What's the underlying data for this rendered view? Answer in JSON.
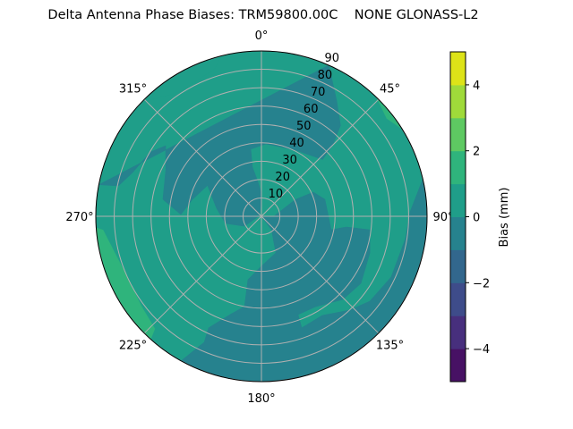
{
  "chart_data": {
    "type": "contour",
    "projection": "polar",
    "title": "Delta Antenna Phase Biases: TRM59800.00C    NONE GLONASS-L2",
    "theta_zero": "top",
    "theta_direction": "clockwise",
    "theta_ticks": [
      "0°",
      "45°",
      "90°",
      "135°",
      "180°",
      "225°",
      "270°",
      "315°"
    ],
    "r_ticks": [
      "10",
      "20",
      "30",
      "40",
      "50",
      "60",
      "70",
      "80",
      "90"
    ],
    "r_range": [
      0,
      90
    ],
    "grid": true,
    "levels": [
      -5,
      -4,
      -3,
      -2,
      -1,
      0,
      1,
      2,
      3,
      4,
      5
    ],
    "level_colors": [
      "#471164",
      "#472f7d",
      "#3e4c8a",
      "#32678d",
      "#26828e",
      "#1f9e89",
      "#2fb47c",
      "#5ec962",
      "#9fda3a",
      "#dde318"
    ],
    "background_band": [
      0,
      1
    ],
    "regions": [
      {
        "band": [
          -1,
          0
        ],
        "rim_arc": [
          281,
          384
        ],
        "points": [
          [
            24,
            90
          ],
          [
            33,
            75
          ],
          [
            41,
            65.5
          ],
          [
            45,
            54.7
          ],
          [
            47,
            45.4
          ],
          [
            27,
            40.5
          ],
          [
            3.5,
            39.5
          ],
          [
            351,
            37
          ],
          [
            349.6,
            27.2
          ],
          [
            354,
            19.1
          ],
          [
            0,
            12.2
          ],
          [
            300,
            1
          ],
          [
            239.6,
            10.7
          ],
          [
            258.7,
            19.9
          ],
          [
            280,
            24.7
          ],
          [
            300,
            33.8
          ],
          [
            283.8,
            38.6
          ],
          [
            271.3,
            43.8
          ],
          [
            279.8,
            54.3
          ],
          [
            296,
            57.8
          ],
          [
            306.4,
            64.7
          ],
          [
            300.1,
            69.7
          ],
          [
            288.8,
            74
          ],
          [
            282,
            79.5
          ],
          [
            281,
            90
          ]
        ]
      },
      {
        "band": [
          -1,
          0
        ],
        "rim_arc": [
          77,
          209
        ],
        "points": [
          [
            0,
            0
          ],
          [
            94,
            6.3
          ],
          [
            63.6,
            20.7
          ],
          [
            65.1,
            31.1
          ],
          [
            75.1,
            35.7
          ],
          [
            90.8,
            36.5
          ],
          [
            100.9,
            38.6
          ],
          [
            97.2,
            46.6
          ],
          [
            97.1,
            59.3
          ],
          [
            108.7,
            62.2
          ],
          [
            124,
            65.2
          ],
          [
            135.6,
            63.3
          ],
          [
            148.8,
            57.4
          ],
          [
            159.6,
            57.1
          ],
          [
            160.2,
            64.6
          ],
          [
            148.5,
            63.3
          ],
          [
            137,
            69.9
          ],
          [
            128.1,
            74.9
          ],
          [
            115.1,
            77.9
          ],
          [
            98.9,
            79.2
          ],
          [
            88.3,
            80.8
          ],
          [
            77,
            90
          ],
          [
            209,
            90
          ],
          [
            204.4,
            75.3
          ],
          [
            205.3,
            67.2
          ],
          [
            197.6,
            56.1
          ],
          [
            190.6,
            50
          ],
          [
            192,
            35.3
          ],
          [
            180,
            27.2
          ],
          [
            158.6,
            21.4
          ],
          [
            143,
            9.1
          ]
        ]
      },
      {
        "band": [
          0,
          1
        ],
        "rim_arc": [
          314,
          346
        ],
        "points": [
          [
            314,
            90
          ],
          [
            346,
            90
          ],
          [
            342.5,
            84.2
          ],
          [
            326.5,
            81
          ],
          [
            315,
            88.7
          ]
        ]
      },
      {
        "band": [
          1,
          2
        ],
        "rim_arc": [
          222,
          266
        ],
        "points": [
          [
            222,
            90
          ],
          [
            266,
            90
          ],
          [
            265,
            86.4
          ],
          [
            256,
            82.2
          ],
          [
            245.6,
            80.1
          ],
          [
            233,
            81.6
          ],
          [
            223.4,
            84.3
          ]
        ]
      },
      {
        "band": [
          1,
          2
        ],
        "rim_arc": [
          44,
          58
        ],
        "points": [
          [
            44,
            90
          ],
          [
            58,
            90
          ],
          [
            52,
            86.5
          ]
        ]
      }
    ],
    "colorbar": {
      "label": "Bias (mm)",
      "ticks": [
        "−4",
        "−2",
        "0",
        "2",
        "4"
      ],
      "tick_values": [
        -4,
        -2,
        0,
        2,
        4
      ],
      "range": [
        -5,
        5
      ]
    }
  }
}
